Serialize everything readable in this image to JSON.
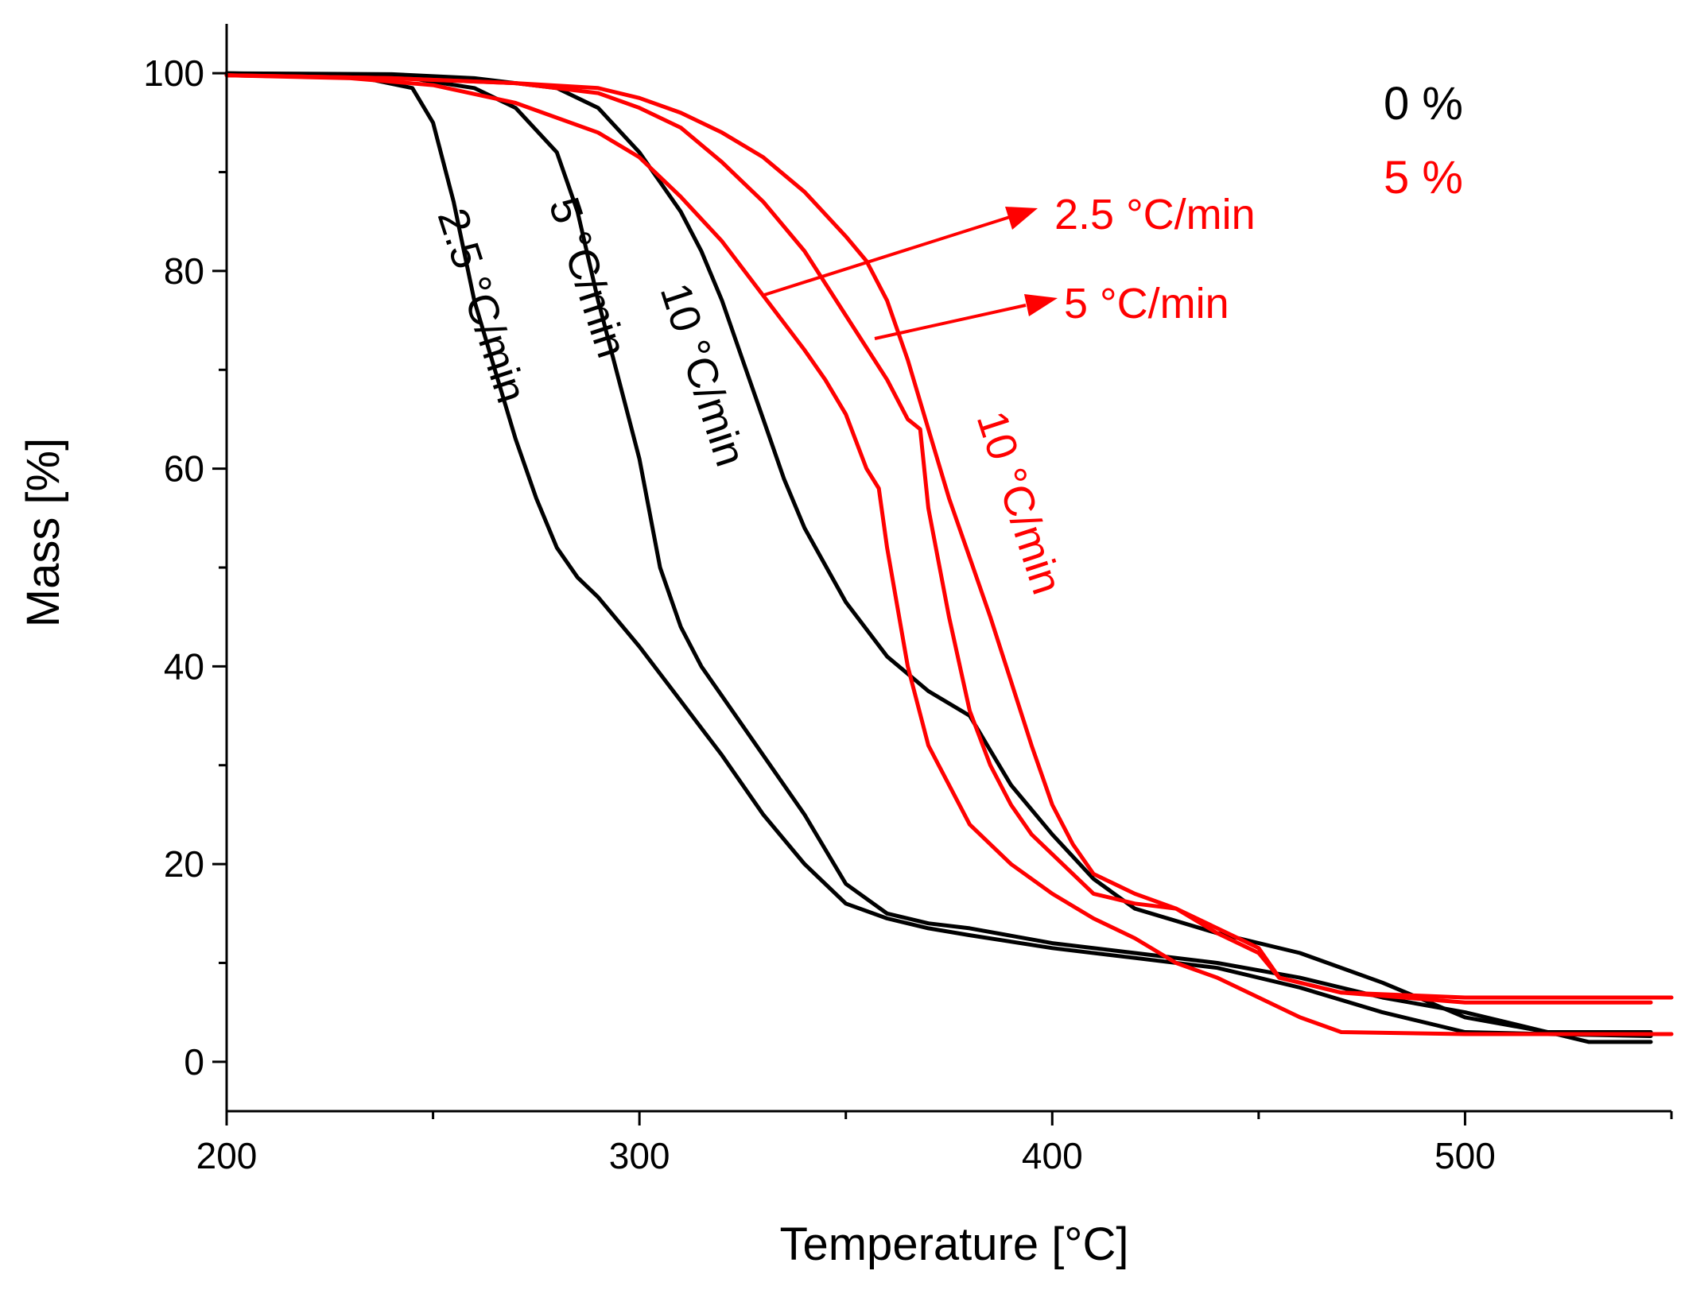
{
  "chart_data": {
    "type": "line",
    "title": "",
    "xlabel": "Temperature [°C]",
    "ylabel": "Mass [%]",
    "xlim": [
      200,
      550
    ],
    "ylim": [
      -5,
      105
    ],
    "x_ticks": [
      200,
      300,
      400,
      500
    ],
    "y_ticks": [
      0,
      20,
      40,
      60,
      80,
      100
    ],
    "grid": false,
    "legend": {
      "placement": "top-right",
      "entries": [
        {
          "text": "0 %",
          "color": "#000000"
        },
        {
          "text": "5 %",
          "color": "#ff0000"
        }
      ]
    },
    "curve_labels": {
      "black_2_5": "2.5 °C/min",
      "black_5": "5 °C/min",
      "black_10": "10 °C/min",
      "red_2_5": "2.5 °C/min",
      "red_5": "5 °C/min",
      "red_10": "10 °C/min"
    },
    "series": [
      {
        "filler": "0 %",
        "rate": "2.5 °C/min",
        "color": "#000000",
        "x": [
          200,
          230,
          245,
          250,
          255,
          260,
          265,
          270,
          275,
          280,
          285,
          290,
          300,
          310,
          320,
          330,
          340,
          350,
          360,
          370,
          380,
          400,
          420,
          440,
          460,
          480,
          500,
          520,
          545
        ],
        "y": [
          100,
          99.8,
          98.5,
          95,
          87,
          77,
          70,
          63,
          57,
          52,
          49,
          47,
          42,
          36.5,
          31,
          25,
          20,
          16,
          14.5,
          13.5,
          12.8,
          11.5,
          10.5,
          9.5,
          7.5,
          5,
          3,
          2.8,
          2.6
        ]
      },
      {
        "filler": "0 %",
        "rate": "5 °C/min",
        "color": "#000000",
        "x": [
          200,
          240,
          260,
          270,
          280,
          285,
          290,
          295,
          300,
          305,
          310,
          315,
          320,
          330,
          340,
          350,
          360,
          370,
          380,
          400,
          420,
          440,
          460,
          480,
          500,
          520,
          530,
          545
        ],
        "y": [
          100,
          99.8,
          98.5,
          96.5,
          92,
          86,
          77,
          69,
          61,
          50,
          44,
          40,
          37,
          31,
          25,
          18,
          15,
          14,
          13.5,
          12,
          11,
          10,
          8.5,
          6.5,
          5,
          3,
          2,
          2
        ]
      },
      {
        "filler": "0 %",
        "rate": "10 °C/min",
        "color": "#000000",
        "x": [
          200,
          240,
          260,
          280,
          290,
          300,
          305,
          310,
          315,
          320,
          325,
          330,
          335,
          340,
          350,
          360,
          370,
          380,
          385,
          390,
          400,
          410,
          420,
          440,
          460,
          480,
          500,
          520,
          545
        ],
        "y": [
          100,
          99.9,
          99.5,
          98.5,
          96.5,
          92,
          89,
          86,
          82,
          77,
          71,
          65,
          59,
          54,
          46.5,
          41,
          37.5,
          35,
          31.5,
          28,
          23,
          18.5,
          15.5,
          13,
          11,
          8,
          4.5,
          3,
          3
        ]
      },
      {
        "filler": "5 %",
        "rate": "2.5 °C/min",
        "color": "#ff0000",
        "x": [
          200,
          230,
          250,
          270,
          290,
          300,
          310,
          320,
          330,
          340,
          345,
          350,
          355,
          358,
          360,
          365,
          370,
          380,
          390,
          400,
          410,
          420,
          430,
          440,
          450,
          460,
          470,
          500,
          550
        ],
        "y": [
          99.8,
          99.5,
          98.8,
          97,
          94,
          91.5,
          87.5,
          83,
          77.5,
          72,
          69,
          65.5,
          60,
          58,
          52,
          40,
          32,
          24,
          20,
          17,
          14.5,
          12.5,
          10,
          8.5,
          6.5,
          4.5,
          3,
          2.8,
          2.8
        ]
      },
      {
        "filler": "5 %",
        "rate": "5 °C/min",
        "color": "#ff0000",
        "x": [
          200,
          240,
          270,
          290,
          300,
          310,
          320,
          330,
          340,
          350,
          360,
          365,
          368,
          370,
          375,
          380,
          385,
          390,
          395,
          400,
          410,
          420,
          430,
          440,
          450,
          455,
          470,
          500,
          545
        ],
        "y": [
          99.8,
          99.5,
          99,
          98,
          96.5,
          94.5,
          91,
          87,
          82,
          75.5,
          69,
          65,
          64,
          56,
          45,
          35.5,
          30,
          26,
          23,
          21,
          17,
          16,
          15.5,
          13,
          11,
          8.5,
          7,
          6,
          6
        ]
      },
      {
        "filler": "5 %",
        "rate": "10 °C/min",
        "color": "#ff0000",
        "x": [
          200,
          240,
          270,
          290,
          300,
          310,
          320,
          330,
          340,
          350,
          355,
          360,
          365,
          370,
          375,
          380,
          385,
          390,
          395,
          400,
          405,
          410,
          420,
          430,
          440,
          450,
          455,
          470,
          500,
          550
        ],
        "y": [
          99.8,
          99.5,
          99,
          98.5,
          97.5,
          96,
          94,
          91.5,
          88,
          83.5,
          81,
          77,
          71,
          64,
          57,
          51,
          45,
          38.5,
          32,
          26,
          22,
          19,
          17,
          15.5,
          13.5,
          11.5,
          8.5,
          7,
          6.5,
          6.5
        ]
      }
    ]
  }
}
